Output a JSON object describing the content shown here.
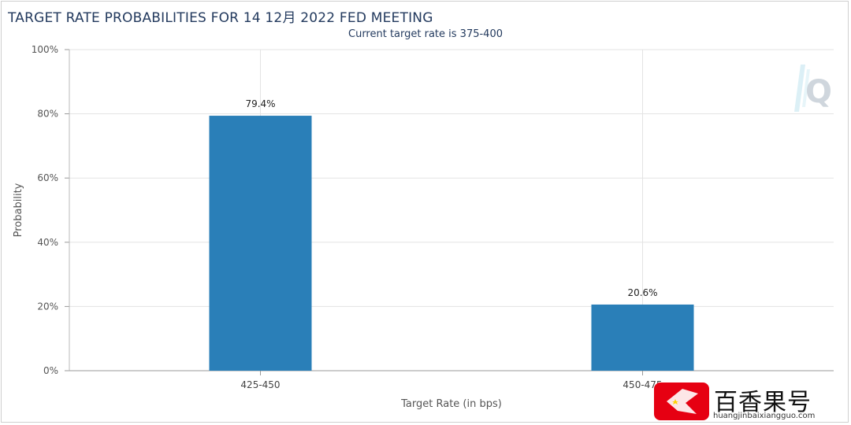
{
  "header": {
    "title": "TARGET RATE PROBABILITIES FOR 14 12月 2022 FED MEETING",
    "subtitle": "Current target rate is 375-400"
  },
  "colors": {
    "bar": "#2a7fb8",
    "title": "#233a5e",
    "grid": "#e3e3e3",
    "watermark_red": "#e60012"
  },
  "watermark": {
    "logo_icon": "q-logo-icon",
    "brand_text": "百香果号",
    "site_text": "huangjinbaixiangguo.com"
  },
  "chart_data": {
    "type": "bar",
    "title": "TARGET RATE PROBABILITIES FOR 14 12月 2022 FED MEETING",
    "subtitle": "Current target rate is 375-400",
    "categories": [
      "425-450",
      "450-475"
    ],
    "values": [
      79.4,
      20.6
    ],
    "data_labels": [
      "79.4%",
      "20.6%"
    ],
    "xlabel": "Target Rate (in bps)",
    "ylabel": "Probability",
    "ylim": [
      0,
      100
    ],
    "yticks": [
      "0%",
      "20%",
      "40%",
      "60%",
      "80%",
      "100%"
    ],
    "grid": true,
    "legend": "none"
  }
}
